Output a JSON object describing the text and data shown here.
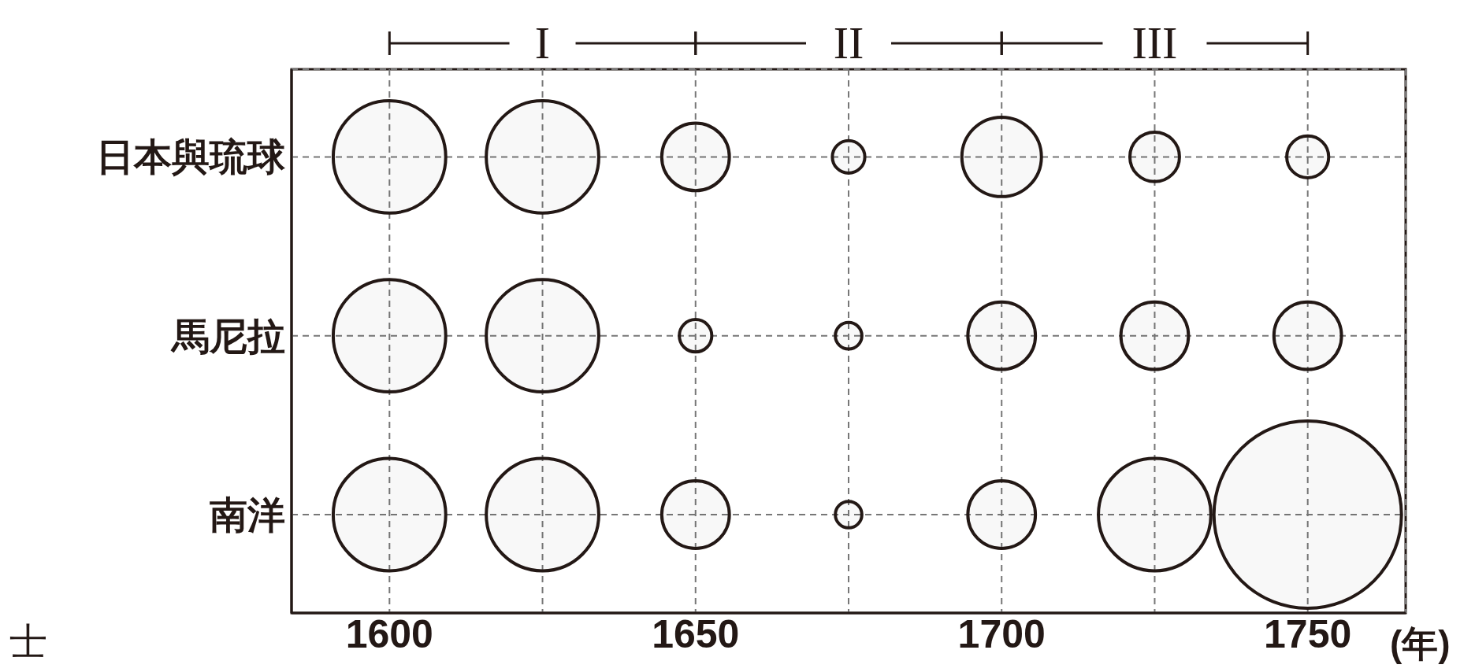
{
  "chart_data": {
    "type": "bubble",
    "orientation": "horizontal",
    "xlabel": "(年)",
    "categories": [
      "日本與琉球",
      "馬尼拉",
      "南洋"
    ],
    "series": [
      {
        "color": "#231815",
        "values": [
          1600,
          1600,
          1600
        ],
        "sizes": [
          0.36,
          0.36,
          0.36
        ]
      },
      {
        "color": "#231815",
        "values": [
          1625,
          1625,
          1625
        ],
        "sizes": [
          0.36,
          0.36,
          0.36
        ]
      },
      {
        "color": "#231815",
        "values": [
          1650,
          1650,
          1650
        ],
        "sizes": [
          0.13,
          0.03,
          0.13
        ]
      },
      {
        "color": "#231815",
        "values": [
          1675,
          1675,
          1675
        ],
        "sizes": [
          0.03,
          0.02,
          0.02
        ]
      },
      {
        "color": "#231815",
        "values": [
          1700,
          1700,
          1700
        ],
        "sizes": [
          0.18,
          0.13,
          0.13
        ]
      },
      {
        "color": "#231815",
        "values": [
          1725,
          1725,
          1725
        ],
        "sizes": [
          0.07,
          0.13,
          0.36
        ]
      },
      {
        "color": "#231815",
        "values": [
          1750,
          1750,
          1750
        ],
        "sizes": [
          0.05,
          0.13,
          1
        ]
      }
    ],
    "xlim": [
      1584,
      1766
    ],
    "xticks": [
      1600,
      {
        "value": 1625,
        "label": null
      },
      1650,
      {
        "value": 1675,
        "label": null
      },
      1700,
      {
        "value": 1725,
        "label": null
      },
      1750
    ],
    "grid": true,
    "line_style": "dashed",
    "annotations": [
      "I",
      "II",
      "III",
      "士"
    ]
  }
}
